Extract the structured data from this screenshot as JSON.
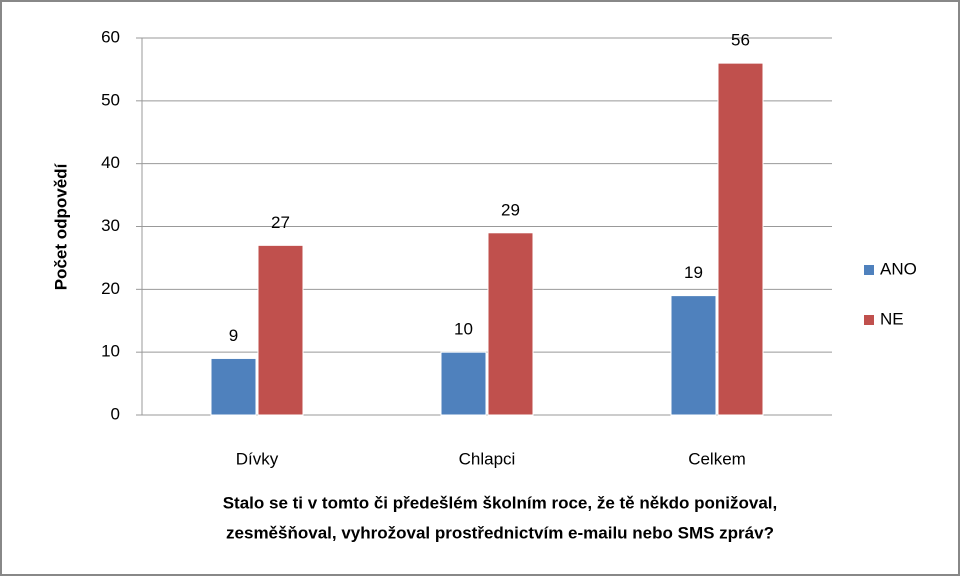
{
  "chart_data": {
    "type": "bar",
    "ylabel": "Počet odpovědí",
    "xlabel": [
      "Stalo se ti v tomto či předešlém školním roce, že tě někdo ponižoval,",
      "zesměšňoval, vyhrožoval prostřednictvím e-mailu nebo SMS zpráv?"
    ],
    "categories": [
      "Dívky",
      "Chlapci",
      "Celkem"
    ],
    "series": [
      {
        "name": "ANO",
        "color": "#4f81bd",
        "values": [
          9,
          10,
          19
        ]
      },
      {
        "name": "NE",
        "color": "#c0504d",
        "values": [
          27,
          29,
          56
        ]
      }
    ],
    "ylim": [
      0,
      60
    ],
    "yticks": [
      0,
      10,
      20,
      30,
      40,
      50,
      60
    ],
    "grid": true,
    "legend": "right"
  }
}
